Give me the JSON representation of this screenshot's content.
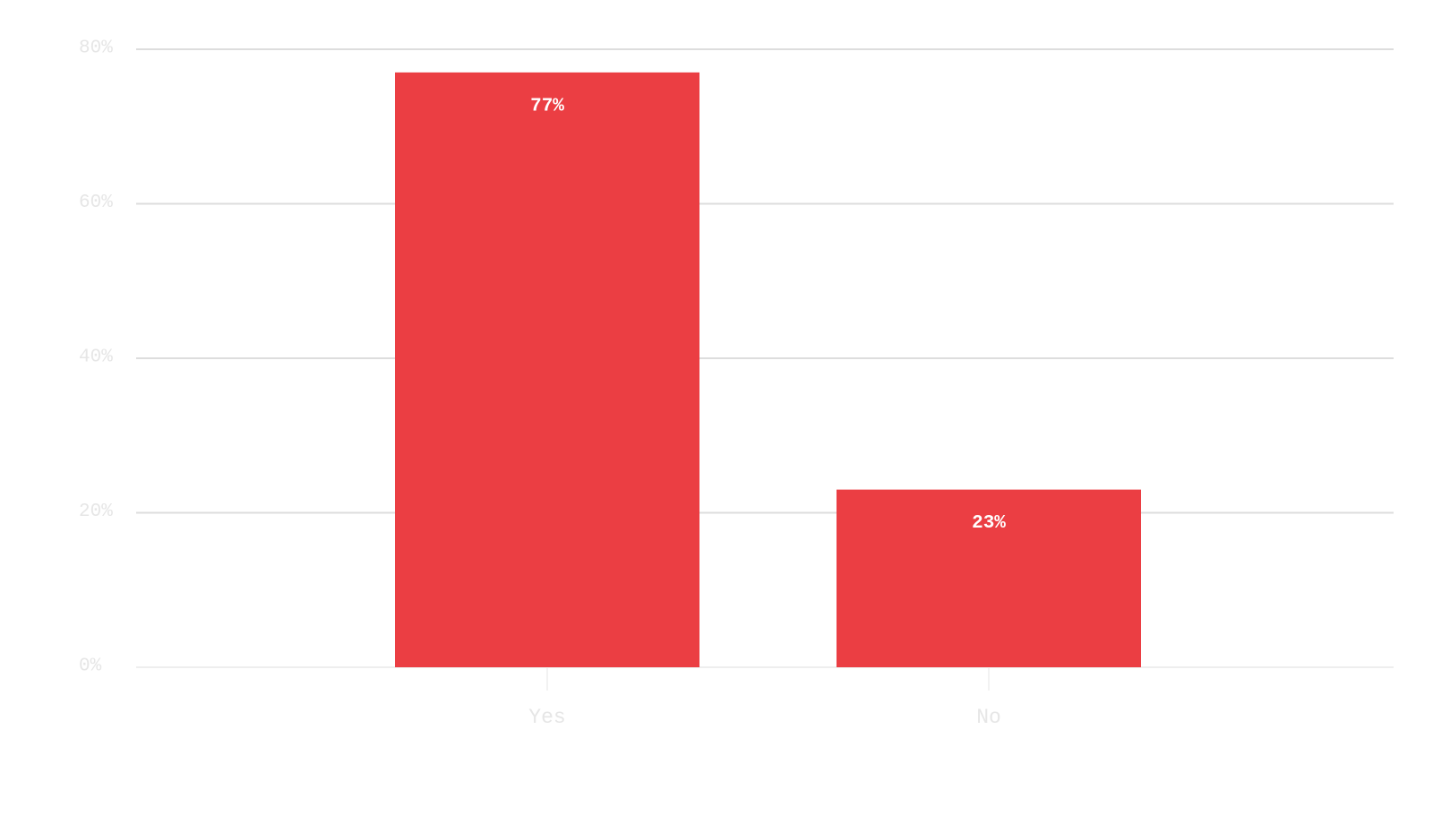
{
  "chart_data": {
    "type": "bar",
    "categories": [
      "Yes",
      "No"
    ],
    "values": [
      77,
      23
    ],
    "value_labels": [
      "77%",
      "23%"
    ],
    "color": "#eb3e43",
    "ylim": [
      0,
      80
    ],
    "yticks": [
      {
        "value": 0,
        "label": "0%"
      },
      {
        "value": 20,
        "label": "20%"
      },
      {
        "value": 40,
        "label": "40%"
      },
      {
        "value": 60,
        "label": "60%"
      },
      {
        "value": 80,
        "label": "80%"
      }
    ],
    "grid": true
  }
}
